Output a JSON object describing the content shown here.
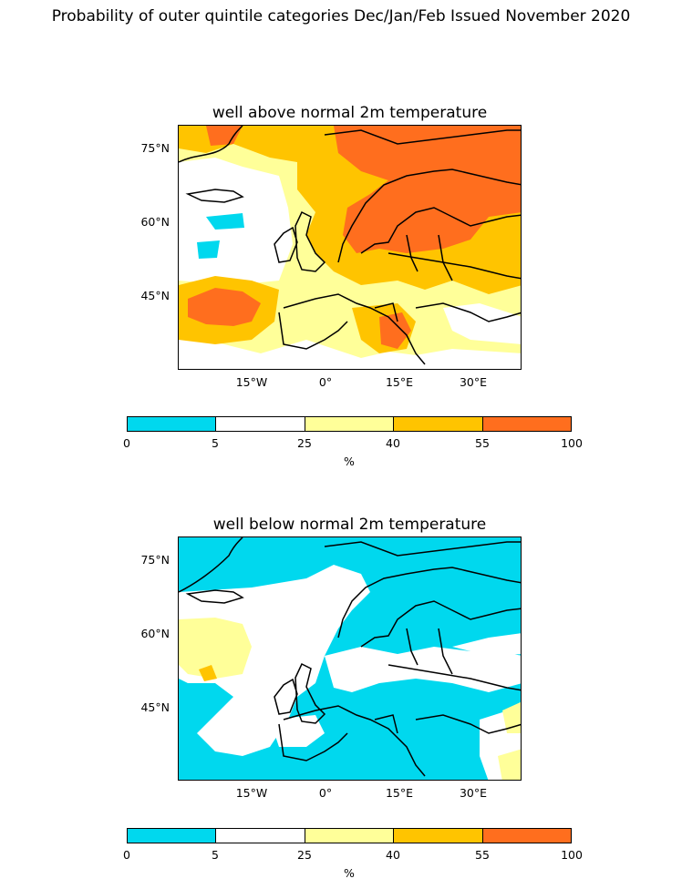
{
  "figure": {
    "title": "Probability of outer quintile categories Dec/Jan/Feb Issued November 2020"
  },
  "colorbar": {
    "levels": [
      "0",
      "5",
      "25",
      "40",
      "55",
      "100"
    ],
    "colors": [
      "#00d8ee",
      "#ffffff",
      "#ffff99",
      "#ffc400",
      "#ff6e1e"
    ],
    "unit": "%"
  },
  "axes": {
    "yticks": [
      "75°N",
      "60°N",
      "45°N"
    ],
    "xticks": [
      "15°W",
      "0°",
      "15°E",
      "30°E"
    ]
  },
  "panels": [
    {
      "title": "well above normal 2m temperature",
      "dominant_category": "55-100% over Scandinavia and Arctic; 40-55% over central/eastern Europe"
    },
    {
      "title": "well below normal 2m temperature",
      "dominant_category": "0-5% over most of Europe and Arctic"
    }
  ]
}
